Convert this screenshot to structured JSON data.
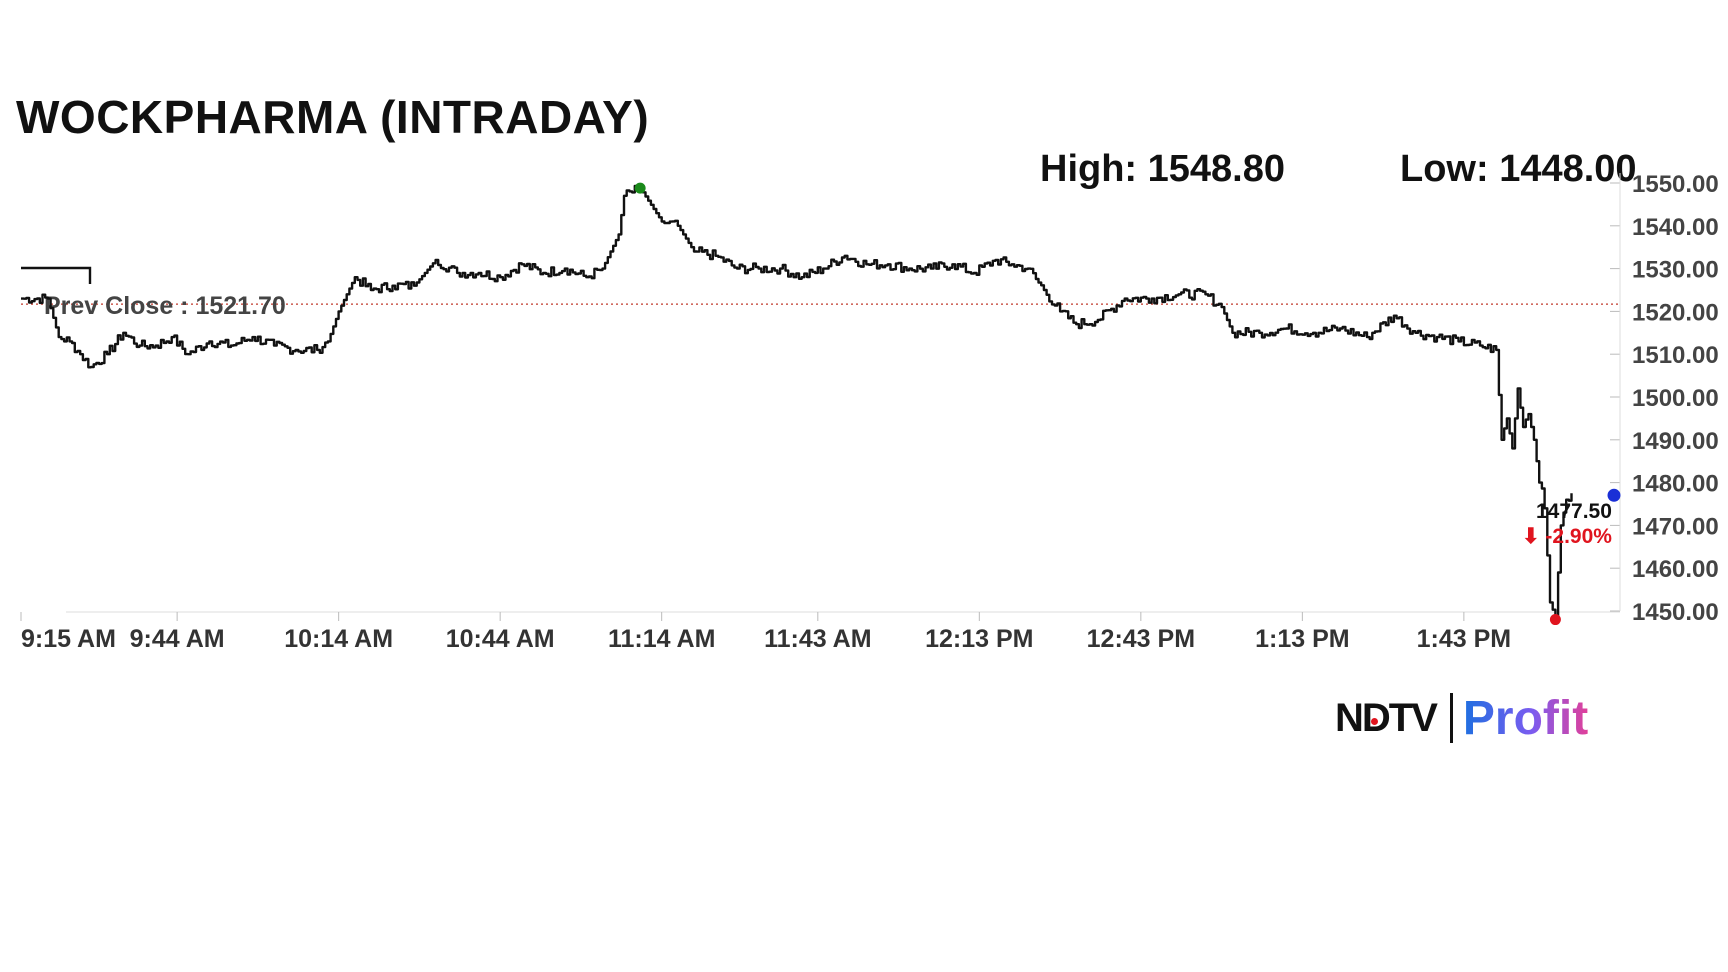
{
  "title": "WOCKPHARMA (INTRADAY)",
  "high_label": "High: 1548.80",
  "low_label": "Low: 1448.00",
  "prev_close_label": "Prev Close : 1521.70",
  "last_value": "1477.50",
  "last_change": "⬇ -2.90%",
  "logo": {
    "ndtv": "NDTV",
    "profit": "Profit"
  },
  "colors": {
    "line": "#111111",
    "prev_close": "#c0392b",
    "high_marker": "#1a8a1a",
    "low_marker": "#e0141e",
    "last_marker": "#1a2fd6",
    "change": "#e0141e"
  },
  "chart_data": {
    "type": "line",
    "title": "WOCKPHARMA (INTRADAY)",
    "xlabel": "",
    "ylabel": "",
    "x_ticks": [
      "9:15 AM",
      "9:44 AM",
      "10:14 AM",
      "10:44 AM",
      "11:14 AM",
      "11:43 AM",
      "12:13 PM",
      "12:43 PM",
      "1:13 PM",
      "1:43 PM"
    ],
    "y_ticks": [
      "1450.00",
      "1460.00",
      "1470.00",
      "1480.00",
      "1490.00",
      "1500.00",
      "1510.00",
      "1520.00",
      "1530.00",
      "1540.00",
      "1550.00"
    ],
    "ylim": [
      1450,
      1550
    ],
    "xlim_minutes_from_open": [
      0,
      297
    ],
    "prev_close": 1521.7,
    "high": 1548.8,
    "low": 1448.0,
    "last": 1477.5,
    "change_pct": -2.9,
    "series": [
      {
        "x": [
          "9:15 AM",
          "9:20 AM",
          "9:22 AM",
          "9:24 AM",
          "9:26 AM",
          "9:28 AM",
          "9:31 AM",
          "9:34 AM",
          "9:37 AM",
          "9:40 AM",
          "9:43 AM",
          "9:46 AM",
          "9:50 AM",
          "9:54 AM",
          "9:58 AM",
          "10:02 AM",
          "10:06 AM",
          "10:10 AM",
          "10:12 AM",
          "10:14 AM",
          "10:17 AM",
          "10:20 AM",
          "10:24 AM",
          "10:28 AM",
          "10:32 AM",
          "10:36 AM",
          "10:40 AM",
          "10:44 AM",
          "10:48 AM",
          "10:52 AM",
          "10:56 AM",
          "11:00 AM",
          "11:03 AM",
          "11:06 AM",
          "11:07 AM",
          "11:10 AM",
          "11:14 AM",
          "11:17 AM",
          "11:20 AM",
          "11:24 AM",
          "11:28 AM",
          "11:32 AM",
          "11:36 AM",
          "11:40 AM",
          "11:44 AM",
          "11:48 AM",
          "11:52 AM",
          "11:56 AM",
          "12:00 PM",
          "12:04 PM",
          "12:08 PM",
          "12:12 PM",
          "12:16 PM",
          "12:19 PM",
          "12:22 PM",
          "12:25 PM",
          "12:28 PM",
          "12:31 PM",
          "12:35 PM",
          "12:40 PM",
          "12:45 PM",
          "12:50 PM",
          "12:55 PM",
          "12:58 PM",
          "1:00 PM",
          "1:05 PM",
          "1:10 PM",
          "1:15 PM",
          "1:20 PM",
          "1:25 PM",
          "1:30 PM",
          "1:34 PM",
          "1:38 PM",
          "1:42 PM",
          "1:46 PM",
          "1:49 PM",
          "1:50 PM",
          "1:51 PM",
          "1:52 PM",
          "1:53 PM",
          "1:54 PM",
          "1:55 PM",
          "1:56 PM",
          "1:57 PM",
          "1:58 PM",
          "1:58 PM",
          "1:59 PM",
          "2:00 PM",
          "2:01 PM",
          "2:02 PM",
          "2:03 PM"
        ],
        "values": [
          1523,
          1523,
          1514,
          1513,
          1510,
          1507,
          1510,
          1515,
          1512,
          1512,
          1514,
          1510,
          1513,
          1512,
          1514,
          1512,
          1511,
          1511,
          1513,
          1520,
          1528,
          1525,
          1526,
          1526,
          1532,
          1529,
          1529,
          1528,
          1531,
          1529,
          1530,
          1528,
          1530,
          1538,
          1547,
          1548.8,
          1541,
          1540,
          1534,
          1533,
          1530,
          1530,
          1530,
          1528,
          1530,
          1533,
          1531,
          1531,
          1530,
          1530,
          1531,
          1529,
          1532,
          1531,
          1530,
          1525,
          1520,
          1517,
          1518,
          1523,
          1523,
          1524,
          1524,
          1521,
          1515,
          1515,
          1516,
          1515,
          1516,
          1514,
          1519,
          1515,
          1514,
          1513,
          1512,
          1511,
          1490,
          1495,
          1488,
          1502,
          1493,
          1496,
          1490,
          1480,
          1478,
          1474,
          1452,
          1448,
          1470,
          1476,
          1477.5
        ]
      }
    ]
  }
}
